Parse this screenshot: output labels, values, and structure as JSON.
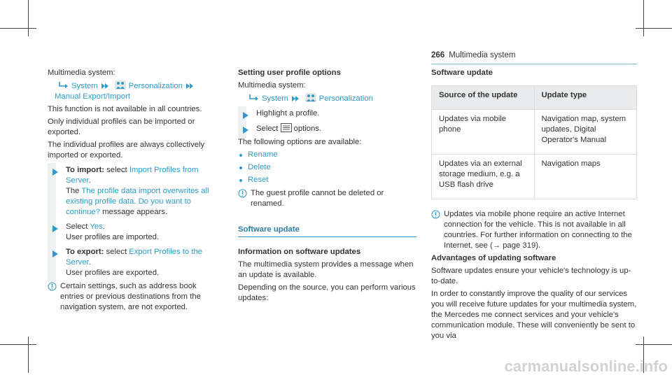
{
  "header": {
    "page_number": "266",
    "section": "Multimedia system"
  },
  "columns": [
    {
      "blocks": [
        {
          "kind": "para",
          "runs": [
            {
              "text": "Multimedia system:",
              "style": "plain"
            }
          ]
        },
        {
          "kind": "path",
          "items": [
            {
              "text": "System"
            },
            {
              "text": "Personalization",
              "icon": "person"
            },
            {
              "text": "Manual Export/Import"
            }
          ]
        },
        {
          "kind": "para",
          "runs": [
            {
              "text": "This function is not available in all countries.",
              "style": "plain"
            }
          ]
        },
        {
          "kind": "para",
          "runs": [
            {
              "text": "Only individual profiles can be imported or exported.",
              "style": "plain"
            }
          ]
        },
        {
          "kind": "para",
          "runs": [
            {
              "text": "The individual profiles are always collectively imported or exported.",
              "style": "plain"
            }
          ]
        },
        {
          "kind": "step",
          "lines": [
            [
              {
                "text": "To import:",
                "style": "bold"
              },
              {
                "text": " select ",
                "style": "plain"
              },
              {
                "text": "Import Profiles from Server",
                "style": "link"
              },
              {
                "text": ".",
                "style": "plain"
              }
            ],
            [
              {
                "text": "The ",
                "style": "plain"
              },
              {
                "text": "The profile data import overwrites all existing profile data. Do you want to continue?",
                "style": "link"
              },
              {
                "text": " message appears.",
                "style": "plain"
              }
            ]
          ]
        },
        {
          "kind": "step",
          "lines": [
            [
              {
                "text": "Select ",
                "style": "plain"
              },
              {
                "text": "Yes",
                "style": "link"
              },
              {
                "text": ".",
                "style": "plain"
              }
            ],
            [
              {
                "text": "User profiles are imported.",
                "style": "plain"
              }
            ]
          ]
        },
        {
          "kind": "step",
          "lines": [
            [
              {
                "text": "To export:",
                "style": "bold"
              },
              {
                "text": " select ",
                "style": "plain"
              },
              {
                "text": "Export Profiles to the Server",
                "style": "link"
              },
              {
                "text": ".",
                "style": "plain"
              }
            ],
            [
              {
                "text": "User profiles are exported.",
                "style": "plain"
              }
            ]
          ]
        },
        {
          "kind": "note",
          "runs": [
            {
              "text": "Certain settings, such as address book entries or previous destinations from the navigation system, are not exported.",
              "style": "plain"
            }
          ]
        }
      ]
    },
    {
      "blocks": [
        {
          "kind": "heading",
          "text": "Setting user profile options"
        },
        {
          "kind": "para",
          "runs": [
            {
              "text": "Multimedia system:",
              "style": "plain"
            }
          ]
        },
        {
          "kind": "path",
          "items": [
            {
              "text": "System"
            },
            {
              "text": "Personalization",
              "icon": "person"
            }
          ]
        },
        {
          "kind": "step",
          "lines": [
            [
              {
                "text": "Highlight a profile.",
                "style": "plain"
              }
            ]
          ]
        },
        {
          "kind": "step",
          "lines": [
            [
              {
                "text": "Select ",
                "style": "plain"
              },
              {
                "text": "options.",
                "style": "plain",
                "icon": "menu"
              }
            ]
          ]
        },
        {
          "kind": "para",
          "runs": [
            {
              "text": "The following options are available:",
              "style": "plain"
            }
          ]
        },
        {
          "kind": "bullets",
          "items": [
            "Rename",
            "Delete",
            "Reset"
          ]
        },
        {
          "kind": "note",
          "runs": [
            {
              "text": "The guest profile cannot be deleted or renamed.",
              "style": "plain"
            }
          ]
        },
        {
          "kind": "section",
          "text": "Software update"
        },
        {
          "kind": "heading",
          "text": "Information on software updates"
        },
        {
          "kind": "para",
          "runs": [
            {
              "text": "The multimedia system provides a message when an update is available.",
              "style": "plain"
            }
          ]
        },
        {
          "kind": "para",
          "runs": [
            {
              "text": "Depending on the source, you can perform various updates:",
              "style": "plain"
            }
          ]
        }
      ]
    },
    {
      "blocks": [
        {
          "kind": "heading",
          "text": "Software update"
        },
        {
          "kind": "table",
          "header": [
            "Source of the update",
            "Update type"
          ],
          "rows": [
            [
              "Updates via mobile phone",
              "Navigation map, system updates, Digital Operator's Manual"
            ],
            [
              "Updates via an external storage medium, e.g. a USB flash drive",
              "Navigation maps"
            ]
          ]
        },
        {
          "kind": "note",
          "runs": [
            {
              "text": "Updates via mobile phone require an active Internet connection for the vehicle. This is not available in all countries. For further information on connecting to the Internet, see (→ page 319).",
              "style": "plain"
            }
          ]
        },
        {
          "kind": "heading",
          "text": "Advantages of updating software"
        },
        {
          "kind": "para",
          "runs": [
            {
              "text": "Software updates ensure your vehicle's technology is up-to-date.",
              "style": "plain"
            }
          ]
        },
        {
          "kind": "para",
          "runs": [
            {
              "text": "In order to constantly improve the quality of our services you will receive future updates for your multimedia system, the Mercedes me connect services and your vehicle's communication module. These will conveniently be sent to you via",
              "style": "plain"
            }
          ]
        }
      ]
    }
  ],
  "watermark": "carmanualsonline.info"
}
